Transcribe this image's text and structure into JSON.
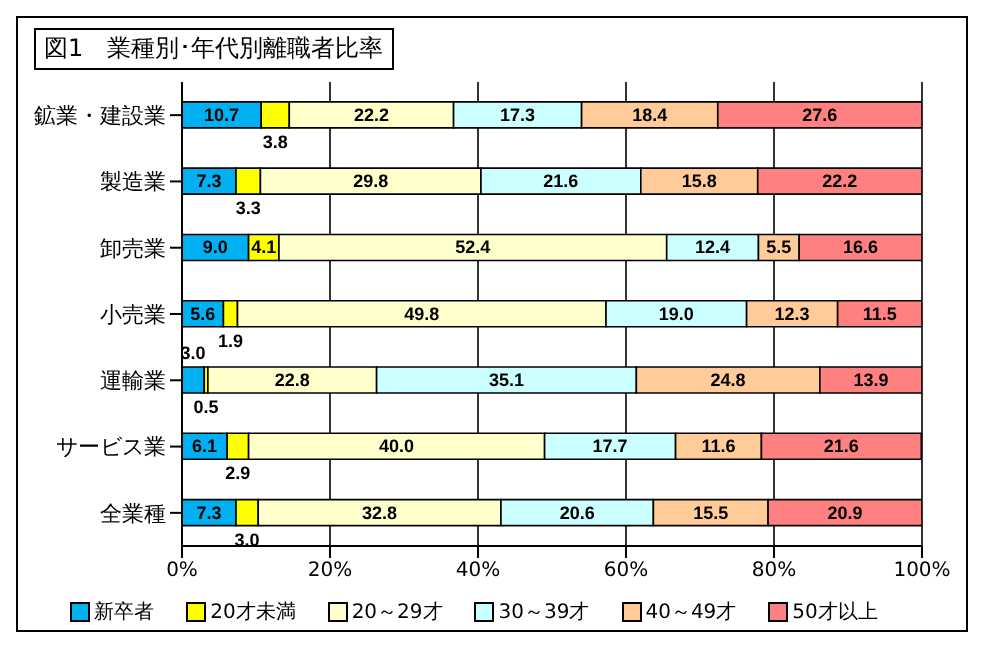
{
  "chart_data": {
    "type": "bar",
    "title": "図1　業種別･年代別離職者比率",
    "orientation": "horizontal",
    "stacked": true,
    "grid": "x",
    "legend": "bottom",
    "categories": [
      "鉱業・建設業",
      "製造業",
      "卸売業",
      "小売業",
      "運輸業",
      "サービス業",
      "全業種"
    ],
    "xlim": [
      0,
      100
    ],
    "xticks": [
      {
        "value": 0,
        "label": "0%"
      },
      {
        "value": 20,
        "label": "20%"
      },
      {
        "value": 40,
        "label": "40%"
      },
      {
        "value": 60,
        "label": "60%"
      },
      {
        "value": 80,
        "label": "80%"
      },
      {
        "value": 100,
        "label": "100%"
      }
    ],
    "series": [
      {
        "name": "新卒者",
        "color": "#00b0f0",
        "values": [
          10.7,
          7.3,
          9.0,
          5.6,
          3.0,
          6.1,
          7.3
        ],
        "value_labels": [
          "10.7",
          "7.3",
          "9.0",
          "5.6",
          "3.0",
          "6.1",
          "7.3"
        ]
      },
      {
        "name": "20才未満",
        "color": "#ffff00",
        "values": [
          3.8,
          3.3,
          4.1,
          1.9,
          0.5,
          2.9,
          3.0
        ],
        "value_labels": [
          "3.8",
          "3.3",
          "4.1",
          "1.9",
          "0.5",
          "2.9",
          "3.0"
        ]
      },
      {
        "name": "20～29才",
        "color": "#ffffcc",
        "values": [
          22.2,
          29.8,
          52.4,
          49.8,
          22.8,
          40.0,
          32.8
        ],
        "value_labels": [
          "22.2",
          "29.8",
          "52.4",
          "49.8",
          "22.8",
          "40.0",
          "32.8"
        ]
      },
      {
        "name": "30～39才",
        "color": "#ccffff",
        "values": [
          17.3,
          21.6,
          12.4,
          19.0,
          35.1,
          17.7,
          20.6
        ],
        "value_labels": [
          "17.3",
          "21.6",
          "12.4",
          "19.0",
          "35.1",
          "17.7",
          "20.6"
        ]
      },
      {
        "name": "40～49才",
        "color": "#ffcc99",
        "values": [
          18.4,
          15.8,
          5.5,
          12.3,
          24.8,
          11.6,
          15.5
        ],
        "value_labels": [
          "18.4",
          "15.8",
          "5.5",
          "12.3",
          "24.8",
          "11.6",
          "15.5"
        ]
      },
      {
        "name": "50才以上",
        "color": "#ff8080",
        "values": [
          27.6,
          22.2,
          16.6,
          11.5,
          13.9,
          21.6,
          20.9
        ],
        "value_labels": [
          "27.6",
          "22.2",
          "16.6",
          "11.5",
          "13.9",
          "21.6",
          "20.9"
        ]
      }
    ]
  }
}
